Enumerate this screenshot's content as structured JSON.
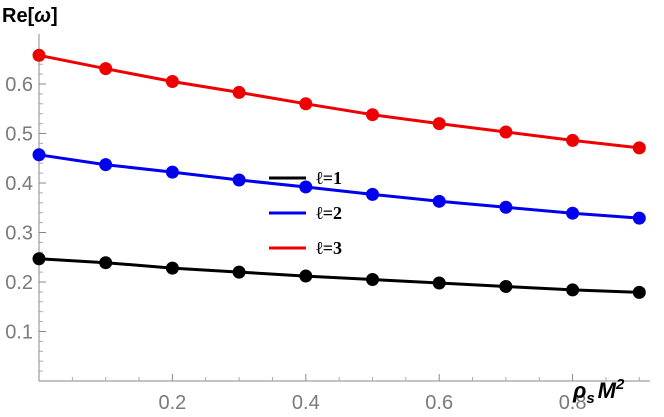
{
  "chart_data": {
    "type": "line",
    "xlabel": "ρ_s M^2",
    "ylabel": "Re[ω]",
    "xlim": [
      0,
      0.92
    ],
    "ylim": [
      0,
      0.68
    ],
    "xticks": [
      "0.2",
      "0.4",
      "0.6",
      "0.8"
    ],
    "xtick_values": [
      0.2,
      0.4,
      0.6,
      0.8
    ],
    "yticks": [
      "0.1",
      "0.2",
      "0.3",
      "0.4",
      "0.5",
      "0.6"
    ],
    "ytick_values": [
      0.1,
      0.2,
      0.3,
      0.4,
      0.5,
      0.6
    ],
    "x": [
      0,
      0.1,
      0.2,
      0.3,
      0.4,
      0.5,
      0.6,
      0.7,
      0.8,
      0.9
    ],
    "series": [
      {
        "name": "ℓ=1",
        "color": "#000000",
        "values": [
          0.247,
          0.239,
          0.228,
          0.22,
          0.212,
          0.205,
          0.198,
          0.191,
          0.184,
          0.179
        ]
      },
      {
        "name": "ℓ=2",
        "color": "#0000ee",
        "values": [
          0.457,
          0.437,
          0.422,
          0.406,
          0.392,
          0.377,
          0.363,
          0.351,
          0.339,
          0.329
        ]
      },
      {
        "name": "ℓ=3",
        "color": "#ee0000",
        "values": [
          0.658,
          0.631,
          0.605,
          0.583,
          0.56,
          0.538,
          0.52,
          0.503,
          0.486,
          0.471
        ]
      }
    ],
    "legend": "center",
    "grid": false
  }
}
